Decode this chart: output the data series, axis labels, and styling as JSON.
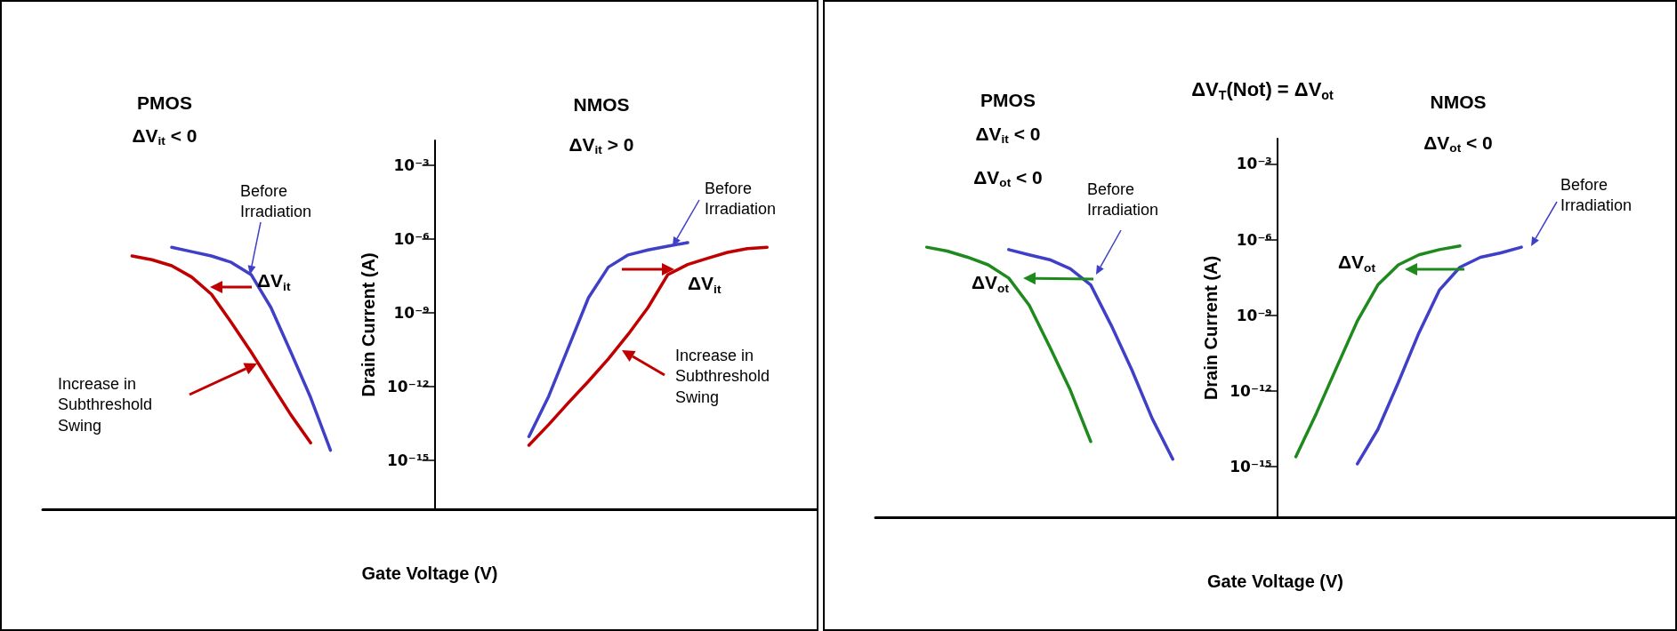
{
  "chart_data": [
    {
      "type": "line",
      "log": true,
      "tick_labels": "y",
      "marker": "none",
      "ylabel": "Drain Current (A)",
      "xlabel": "Gate Voltage (V)",
      "ylim": [
        1e-17,
        0.01
      ],
      "yticks": [
        {
          "value": 0.001,
          "label": "10⁻³"
        },
        {
          "value": 1e-06,
          "label": "10⁻⁶"
        },
        {
          "value": 1e-09,
          "label": "10⁻⁹"
        },
        {
          "value": 1e-12,
          "label": "10⁻¹²"
        },
        {
          "value": 1e-15,
          "label": "10⁻¹⁵"
        }
      ],
      "categories": [
        null,
        null,
        null,
        null,
        null,
        null,
        null,
        null,
        null,
        null,
        null,
        null,
        null,
        null,
        null,
        null,
        null,
        null,
        null,
        null,
        null,
        null,
        null,
        null,
        null,
        null,
        null,
        null,
        null,
        null,
        null,
        null,
        null,
        null,
        null,
        null,
        null,
        null,
        null
      ],
      "series": [
        {
          "color": "#3f3fc8",
          "values": [
            null,
            null,
            null,
            null,
            null,
            null,
            4.5e-07,
            3e-07,
            2e-07,
            1.1e-07,
            3.5e-08,
            1.6e-09,
            2.5e-11,
            3.5e-13,
            2.5e-15,
            null,
            null,
            null,
            null,
            null,
            null,
            null,
            null,
            null,
            null,
            null,
            null,
            null,
            null,
            null,
            null,
            null,
            null,
            null,
            null,
            null,
            null,
            null,
            null
          ]
        },
        {
          "color": "#c00000",
          "values": [
            null,
            null,
            null,
            null,
            2e-07,
            1.4e-07,
            8e-08,
            2.8e-08,
            5.6e-09,
            4e-10,
            2.5e-11,
            1.3e-12,
            7e-14,
            5e-15,
            null,
            null,
            null,
            null,
            null,
            null,
            null,
            null,
            null,
            null,
            null,
            null,
            null,
            null,
            null,
            null,
            null,
            null,
            null,
            null,
            null,
            null,
            null,
            null,
            null
          ]
        },
        {
          "color": "#3f3fc8",
          "values": [
            null,
            null,
            null,
            null,
            null,
            null,
            null,
            null,
            null,
            null,
            null,
            null,
            null,
            null,
            null,
            null,
            null,
            null,
            null,
            null,
            null,
            null,
            null,
            null,
            9e-15,
            4e-13,
            4e-11,
            4e-09,
            7e-08,
            2.2e-07,
            3.5e-07,
            5e-07,
            7e-07,
            null,
            null,
            null,
            null,
            null,
            null
          ]
        },
        {
          "color": "#c00000",
          "values": [
            null,
            null,
            null,
            null,
            null,
            null,
            null,
            null,
            null,
            null,
            null,
            null,
            null,
            null,
            null,
            null,
            null,
            null,
            null,
            null,
            null,
            null,
            null,
            null,
            4e-15,
            2.8e-14,
            2.2e-13,
            1.6e-12,
            1.3e-11,
            1.3e-10,
            1.6e-09,
            3.5e-08,
            9e-08,
            1.6e-07,
            2.8e-07,
            4e-07,
            4.5e-07,
            null,
            null
          ]
        }
      ],
      "annotations": [
        "PMOS",
        "ΔV$_{it}$ < 0",
        "NMOS",
        "ΔV$_{it}$ > 0",
        "Before Irradiation",
        "ΔV$_{it}$",
        "Increase in Subthreshold Swing",
        "Before Irradiation",
        "ΔV$_{it}$",
        "Increase in Subthreshold Swing"
      ]
    },
    {
      "type": "line",
      "log": true,
      "tick_labels": "y",
      "marker": "none",
      "ylabel": "Drain Current (A)",
      "xlabel": "Gate Voltage (V)",
      "ylim": [
        1e-17,
        0.01
      ],
      "yticks": [
        {
          "value": 0.001,
          "label": "10⁻³"
        },
        {
          "value": 1e-06,
          "label": "10⁻⁶"
        },
        {
          "value": 1e-09,
          "label": "10⁻⁹"
        },
        {
          "value": 1e-12,
          "label": "10⁻¹²"
        },
        {
          "value": 1e-15,
          "label": "10⁻¹⁵"
        }
      ],
      "categories": [
        null,
        null,
        null,
        null,
        null,
        null,
        null,
        null,
        null,
        null,
        null,
        null,
        null,
        null,
        null,
        null,
        null,
        null,
        null,
        null,
        null,
        null,
        null,
        null,
        null,
        null,
        null,
        null,
        null,
        null,
        null,
        null,
        null,
        null,
        null,
        null,
        null,
        null,
        null
      ],
      "series": [
        {
          "color": "#1e8a1e",
          "values": [
            null,
            null,
            5e-07,
            3.5e-07,
            2e-07,
            1e-07,
            3e-08,
            2.5e-09,
            5.6e-11,
            1.1e-12,
            1e-14,
            null,
            null,
            null,
            null,
            null,
            null,
            null,
            null,
            null,
            null,
            null,
            null,
            null,
            null,
            null,
            null,
            null,
            null,
            null,
            null,
            null,
            null,
            null,
            null,
            null,
            null,
            null,
            null
          ]
        },
        {
          "color": "#3f3fc8",
          "values": [
            null,
            null,
            null,
            null,
            null,
            null,
            4e-07,
            2.5e-07,
            1.6e-07,
            7e-08,
            1.6e-08,
            4e-10,
            7e-12,
            8e-14,
            2e-15,
            null,
            null,
            null,
            null,
            null,
            null,
            null,
            null,
            null,
            null,
            null,
            null,
            null,
            null,
            null,
            null,
            null,
            null,
            null,
            null,
            null,
            null,
            null,
            null
          ]
        },
        {
          "color": "#1e8a1e",
          "values": [
            null,
            null,
            null,
            null,
            null,
            null,
            null,
            null,
            null,
            null,
            null,
            null,
            null,
            null,
            null,
            null,
            null,
            null,
            null,
            null,
            2.5e-15,
            1.3e-13,
            9e-12,
            6e-10,
            1.6e-08,
            1e-07,
            2.5e-07,
            4e-07,
            5.6e-07,
            null,
            null,
            null,
            null,
            null,
            null,
            null,
            null,
            null,
            null
          ]
        },
        {
          "color": "#3f3fc8",
          "values": [
            null,
            null,
            null,
            null,
            null,
            null,
            null,
            null,
            null,
            null,
            null,
            null,
            null,
            null,
            null,
            null,
            null,
            null,
            null,
            null,
            null,
            null,
            null,
            1.3e-15,
            3e-14,
            2.2e-12,
            2e-10,
            1e-08,
            8e-08,
            2e-07,
            3e-07,
            5e-07,
            null,
            null,
            null,
            null,
            null,
            null,
            null
          ]
        }
      ],
      "annotations": [
        "ΔV$_{T}$(Not) = ΔV$_{ot}$",
        "PMOS",
        "ΔV$_{it}$ < 0",
        "ΔV$_{ot}$ < 0",
        "NMOS",
        "ΔV$_{ot}$ < 0",
        "Before Irradiation",
        "ΔV$_{ot}$",
        "Before Irradiation",
        "ΔV$_{ot}$"
      ]
    }
  ]
}
